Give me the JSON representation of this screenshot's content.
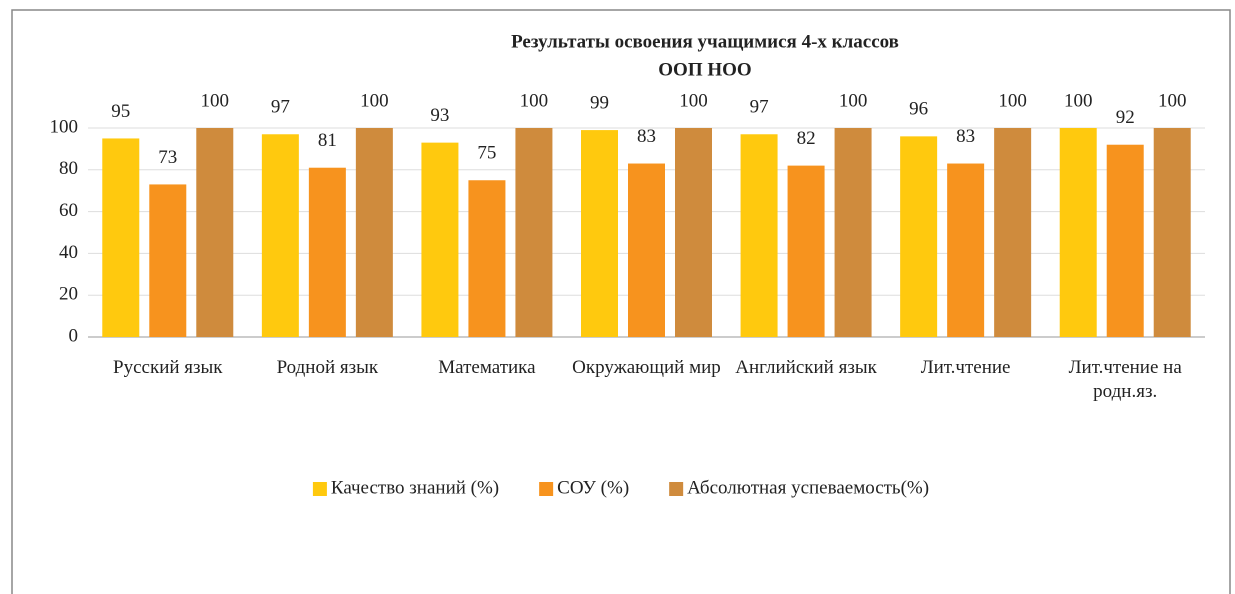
{
  "chart_data": {
    "type": "bar",
    "title": [
      "Результаты освоения учащимися 4-х классов",
      "ООП НОО"
    ],
    "categories": [
      "Русский язык",
      "Родной язык",
      "Математика",
      "Окружающий мир",
      "Английский язык",
      "Лит.чтение",
      "Лит.чтение на родн.яз."
    ],
    "series": [
      {
        "name": "Качество знаний (%)",
        "color": "#ffc90e",
        "values": [
          95,
          97,
          93,
          99,
          97,
          96,
          100
        ]
      },
      {
        "name": "СОУ (%)",
        "color": "#f7931e",
        "values": [
          73,
          81,
          75,
          83,
          82,
          83,
          92
        ]
      },
      {
        "name": "Абсолютная успеваемость(%)",
        "color": "#cf8b3d",
        "values": [
          100,
          100,
          100,
          100,
          100,
          100,
          100
        ]
      }
    ],
    "ylim": [
      0,
      100
    ],
    "yticks": [
      0,
      20,
      40,
      60,
      80,
      100
    ],
    "grid": true,
    "legend": "bottom"
  }
}
